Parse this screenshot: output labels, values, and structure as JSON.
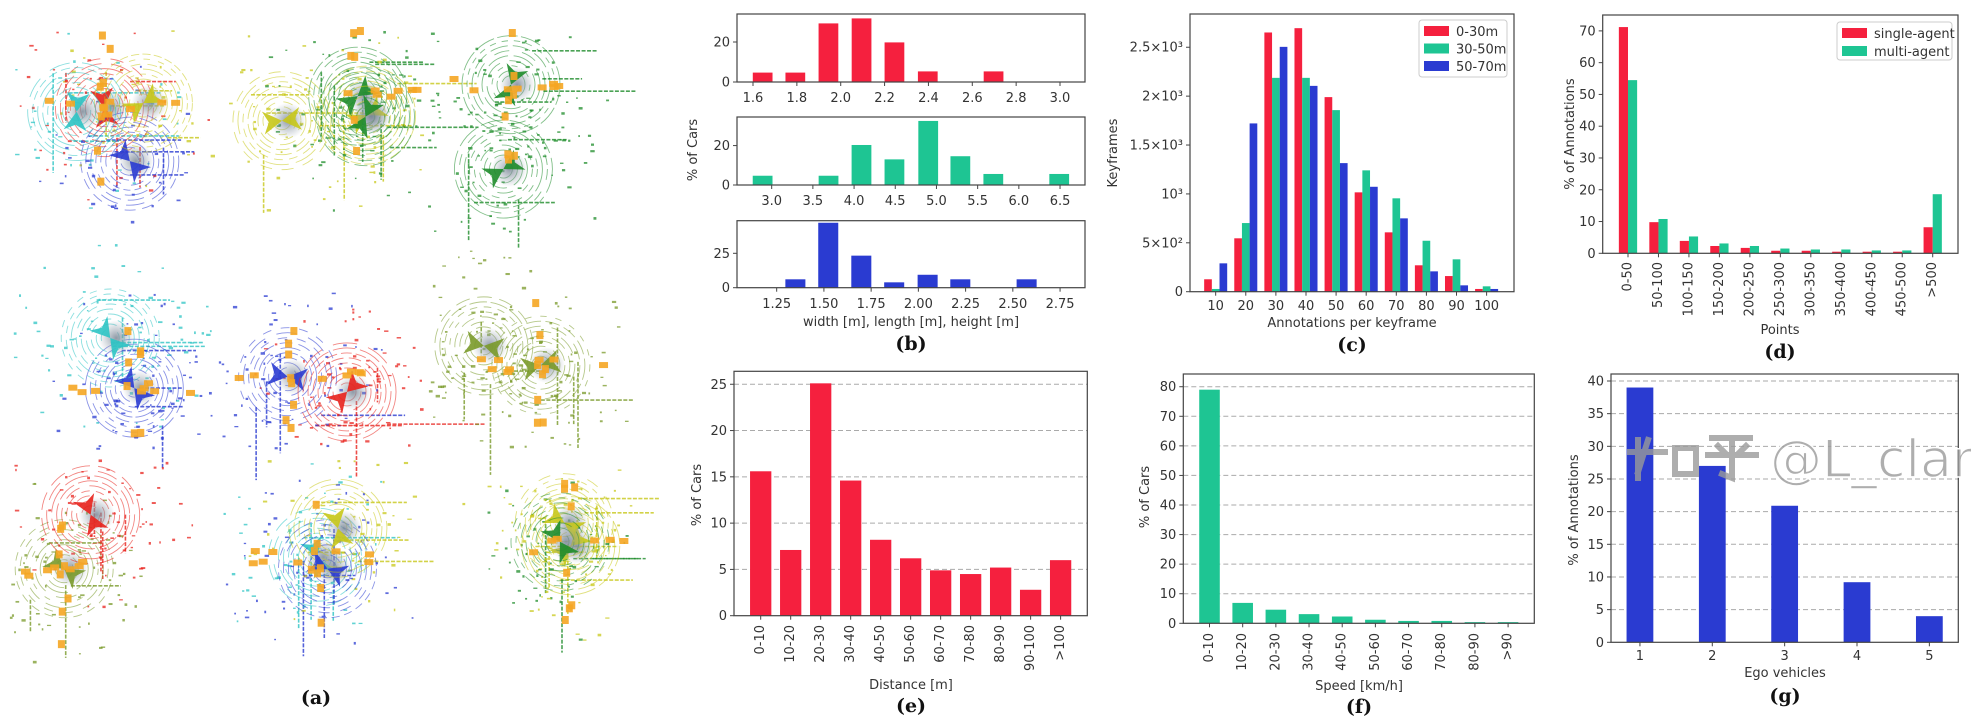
{
  "colors": {
    "red": "#f5203e",
    "green": "#1ec593",
    "blue": "#2a3bd1",
    "orange_box": "#f5a623"
  },
  "panel_a": {
    "caption": "(a)",
    "description_count": 9,
    "ego_palette": [
      "#2a3bd1",
      "#1e8c2a",
      "#e8221c",
      "#c8c81a",
      "#2ec4c4",
      "#7a9a2a"
    ]
  },
  "watermark": {
    "site": "知乎",
    "handle": "@L_clark"
  },
  "chart_data": [
    {
      "id": "b",
      "type": "bar",
      "caption": "(b)",
      "ylabel": "% of Cars",
      "xlabel": "width [m], length [m], height [m]",
      "subplots": [
        {
          "name": "width",
          "color": "#f5203e",
          "bin_width": 0.09,
          "xlim": [
            1.527,
            3.114
          ],
          "ylim": [
            0,
            34
          ],
          "x": [
            1.644,
            1.793,
            1.944,
            2.095,
            2.245,
            2.397,
            2.697
          ],
          "values": [
            4.7,
            4.7,
            29.3,
            31.8,
            19.8,
            5.3,
            5.3
          ],
          "xticks": [
            1.6,
            1.8,
            2.0,
            2.2,
            2.4,
            2.6,
            2.8,
            3.0
          ],
          "xtick_labels": [
            "1.6",
            "1.8",
            "2.0",
            "2.2",
            "2.4",
            "2.6",
            "2.8",
            "3.0"
          ],
          "yticks": [
            0,
            20
          ],
          "ytick_labels": [
            "0",
            "20"
          ]
        },
        {
          "name": "length",
          "color": "#1ec593",
          "bin_width": 0.24,
          "xlim": [
            2.579,
            6.803
          ],
          "ylim": [
            0,
            34.5
          ],
          "x": [
            2.89,
            3.69,
            4.09,
            4.49,
            4.9,
            5.29,
            5.69,
            6.49
          ],
          "values": [
            4.7,
            4.7,
            20.3,
            13.0,
            32.5,
            14.6,
            5.6,
            5.6
          ],
          "xticks": [
            3.0,
            3.5,
            4.0,
            4.5,
            5.0,
            5.5,
            6.0,
            6.5
          ],
          "xtick_labels": [
            "3.0",
            "3.5",
            "4.0",
            "4.5",
            "5.0",
            "5.5",
            "6.0",
            "6.5"
          ],
          "yticks": [
            0,
            20
          ],
          "ytick_labels": [
            "0",
            "20"
          ]
        },
        {
          "name": "height",
          "color": "#2a3bd1",
          "bin_width": 0.106,
          "xlim": [
            1.04,
            2.882
          ],
          "ylim": [
            0,
            48.7
          ],
          "x": [
            1.349,
            1.523,
            1.698,
            1.872,
            2.049,
            2.222,
            2.573
          ],
          "values": [
            6.1,
            47.2,
            23.3,
            3.9,
            9.4,
            6.1,
            6.1
          ],
          "xticks": [
            1.25,
            1.5,
            1.75,
            2.0,
            2.25,
            2.5,
            2.75
          ],
          "xtick_labels": [
            "1.25",
            "1.50",
            "1.75",
            "2.00",
            "2.25",
            "2.50",
            "2.75"
          ],
          "yticks": [
            0,
            25
          ],
          "ytick_labels": [
            "0",
            "25"
          ]
        }
      ]
    },
    {
      "id": "c",
      "type": "bar",
      "caption": "(c)",
      "ylabel": "Keyframes",
      "xlabel": "Annotations per keyframe",
      "legend_position": "top-right",
      "xlim": [
        1.47,
        109.1
      ],
      "ylim": [
        0,
        2840
      ],
      "x": [
        10,
        20,
        30,
        40,
        50,
        60,
        70,
        80,
        90,
        100
      ],
      "xtick_labels": [
        "10",
        "20",
        "30",
        "40",
        "50",
        "60",
        "70",
        "80",
        "90",
        "100"
      ],
      "yticks": [
        0,
        500,
        1000,
        1500,
        2000,
        2500
      ],
      "ytick_labels": [
        "0",
        "5×10²",
        "10³",
        "1.5×10³",
        "2×10³",
        "2.5×10³"
      ],
      "series": [
        {
          "name": "0-30m",
          "color": "#f5203e",
          "values": [
            127,
            546,
            2651,
            2695,
            1990,
            1016,
            607,
            270,
            160,
            28
          ]
        },
        {
          "name": "30-50m",
          "color": "#1ec593",
          "values": [
            28,
            702,
            2187,
            2187,
            1857,
            1241,
            955,
            521,
            331,
            55
          ]
        },
        {
          "name": "50-70m",
          "color": "#2a3bd1",
          "values": [
            290,
            1721,
            2504,
            2105,
            1315,
            1073,
            750,
            208,
            65,
            28
          ]
        }
      ]
    },
    {
      "id": "d",
      "type": "bar",
      "caption": "(d)",
      "ylabel": "% of Annotations",
      "xlabel": "Points",
      "legend_position": "top-right",
      "ylim": [
        0,
        75
      ],
      "categories": [
        "0-50",
        "50-100",
        "100-150",
        "150-200",
        "200-250",
        "250-300",
        "300-350",
        "350-400",
        "400-450",
        "450-500",
        ">500"
      ],
      "yticks": [
        0,
        10,
        20,
        30,
        40,
        50,
        60,
        70
      ],
      "ytick_labels": [
        "0",
        "10",
        "20",
        "30",
        "40",
        "50",
        "60",
        "70"
      ],
      "series": [
        {
          "name": "single-agent",
          "color": "#f5203e",
          "values": [
            71.2,
            9.8,
            3.9,
            2.3,
            1.7,
            0.8,
            0.8,
            0.5,
            0.5,
            0.5,
            8.2
          ]
        },
        {
          "name": "multi-agent",
          "color": "#1ec593",
          "values": [
            54.5,
            10.8,
            5.3,
            3.1,
            2.3,
            1.5,
            1.2,
            1.2,
            0.9,
            0.9,
            18.6
          ]
        }
      ]
    },
    {
      "id": "e",
      "type": "bar",
      "caption": "(e)",
      "ylabel": "% of Cars",
      "xlabel": "Distance [m]",
      "grid": true,
      "ylim": [
        0,
        26.4
      ],
      "categories": [
        "0-10",
        "10-20",
        "20-30",
        "30-40",
        "40-50",
        "50-60",
        "60-70",
        "70-80",
        "80-90",
        "90-100",
        ">100"
      ],
      "yticks": [
        0,
        5,
        10,
        15,
        20,
        25
      ],
      "ytick_labels": [
        "0",
        "5",
        "10",
        "15",
        "20",
        "25"
      ],
      "series": [
        {
          "name": "cars",
          "color": "#f5203e",
          "values": [
            15.6,
            7.1,
            25.1,
            14.6,
            8.2,
            6.2,
            4.9,
            4.5,
            5.2,
            2.8,
            6.0
          ]
        }
      ]
    },
    {
      "id": "f",
      "type": "bar",
      "caption": "(f)",
      "ylabel": "% of Cars",
      "xlabel": "Speed [km/h]",
      "grid": true,
      "ylim": [
        0,
        84.3
      ],
      "categories": [
        "0-10",
        "10-20",
        "20-30",
        "30-40",
        "40-50",
        "50-60",
        "60-70",
        "70-80",
        "80-90",
        ">90"
      ],
      "yticks": [
        0,
        10,
        20,
        30,
        40,
        50,
        60,
        70,
        80
      ],
      "ytick_labels": [
        "0",
        "10",
        "20",
        "30",
        "40",
        "50",
        "60",
        "70",
        "80"
      ],
      "series": [
        {
          "name": "cars",
          "color": "#1ec593",
          "values": [
            79.0,
            6.9,
            4.6,
            3.1,
            2.3,
            1.2,
            0.8,
            0.8,
            0.4,
            0.4
          ]
        }
      ]
    },
    {
      "id": "g",
      "type": "bar",
      "caption": "(g)",
      "ylabel": "% of Annotations",
      "xlabel": "Ego vehicles",
      "grid": true,
      "ylim": [
        0,
        41.07
      ],
      "categories": [
        "1",
        "2",
        "3",
        "4",
        "5"
      ],
      "yticks": [
        0,
        5,
        10,
        15,
        20,
        25,
        30,
        35,
        40
      ],
      "ytick_labels": [
        "0",
        "5",
        "10",
        "15",
        "20",
        "25",
        "30",
        "35",
        "40"
      ],
      "series": [
        {
          "name": "annotations",
          "color": "#2a3bd1",
          "values": [
            39.0,
            27.0,
            20.9,
            9.2,
            4.0
          ]
        }
      ]
    }
  ]
}
